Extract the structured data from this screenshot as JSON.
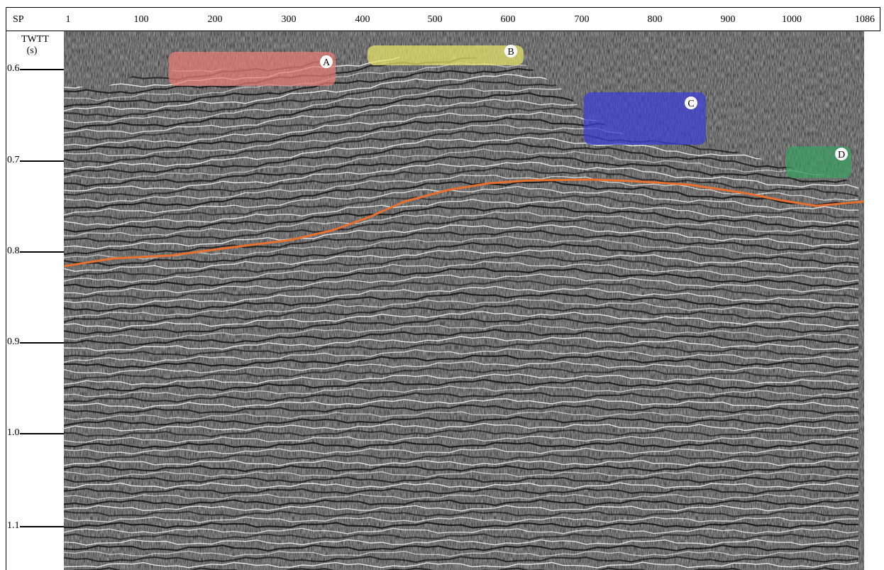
{
  "header": {
    "sp_label": "SP",
    "shot_points": [
      "1",
      "100",
      "200",
      "300",
      "400",
      "500",
      "600",
      "700",
      "800",
      "900",
      "1000",
      "1086"
    ]
  },
  "axis": {
    "twtt_label": "TWTT",
    "unit_label": "(s)",
    "time_ticks": [
      "0.6",
      "0.7",
      "0.8",
      "0.9",
      "1.0",
      "1.1"
    ]
  },
  "zones": [
    {
      "label": "A",
      "color": "#e87b73"
    },
    {
      "label": "B",
      "color": "#e8e66a"
    },
    {
      "label": "C",
      "color": "#3d3fd8"
    },
    {
      "label": "D",
      "color": "#3aa061"
    }
  ],
  "horizon": {
    "color": "#e8702f"
  },
  "section": {
    "background": "#8f8f8f",
    "reflector_dark": "#151515",
    "reflector_light": "#f4f4f4"
  }
}
